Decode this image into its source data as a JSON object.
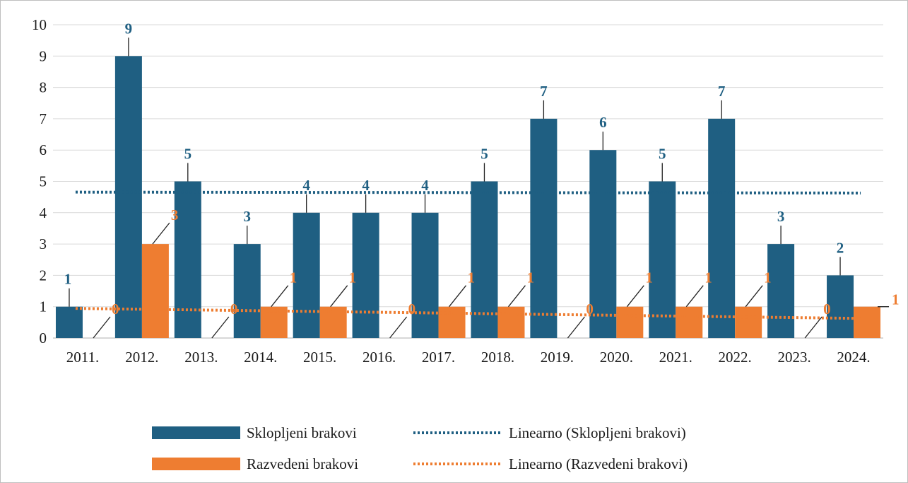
{
  "chart_data": {
    "type": "bar",
    "categories": [
      "2011.",
      "2012.",
      "2013.",
      "2014.",
      "2015.",
      "2016.",
      "2017.",
      "2018.",
      "2019.",
      "2020.",
      "2021.",
      "2022.",
      "2023.",
      "2024."
    ],
    "series": [
      {
        "name": "Sklopljeni brakovi",
        "color": "#1f5f82",
        "values": [
          1,
          9,
          5,
          3,
          4,
          4,
          4,
          5,
          7,
          6,
          5,
          7,
          3,
          2
        ]
      },
      {
        "name": "Razvedeni brakovi",
        "color": "#ee7d31",
        "values": [
          0,
          3,
          0,
          1,
          1,
          0,
          1,
          1,
          0,
          1,
          1,
          1,
          0,
          1
        ]
      }
    ],
    "trendlines": [
      {
        "name": "Linearno (Sklopljeni brakovi)",
        "type": "linear",
        "of": "Sklopljeni brakovi",
        "color": "#1f5f82"
      },
      {
        "name": "Linearno (Razvedeni brakovi)",
        "type": "linear",
        "of": "Razvedeni brakovi",
        "color": "#ee7d31"
      }
    ],
    "y_ticks": [
      "0",
      "1",
      "2",
      "3",
      "4",
      "5",
      "6",
      "7",
      "8",
      "9",
      "10"
    ],
    "ylim": [
      0,
      10
    ],
    "grid": true,
    "legend_position": "bottom"
  }
}
